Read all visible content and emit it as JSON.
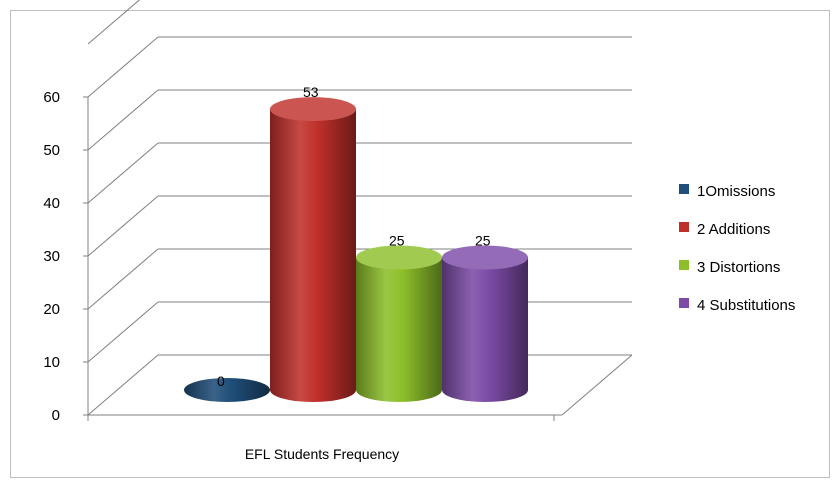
{
  "chart_data": {
    "type": "bar",
    "style": "3d-cylinder",
    "categories": [
      "EFL Students Frequency"
    ],
    "series": [
      {
        "name": "1Omissions",
        "values": [
          0
        ],
        "color": "#1f4e79"
      },
      {
        "name": "2 Additions",
        "values": [
          53
        ],
        "color": "#c0302b"
      },
      {
        "name": "3 Distortions",
        "values": [
          25
        ],
        "color": "#8cbf2a"
      },
      {
        "name": "4 Substitutions",
        "values": [
          25
        ],
        "color": "#7b4ba6"
      }
    ],
    "data_labels": [
      "0",
      "53",
      "25",
      "25"
    ],
    "yticks": [
      "0",
      "10",
      "20",
      "30",
      "40",
      "50",
      "60"
    ],
    "ylim": [
      0,
      70
    ],
    "title": "",
    "xlabel": "",
    "ylabel": "",
    "grid": true,
    "legend_position": "right"
  }
}
